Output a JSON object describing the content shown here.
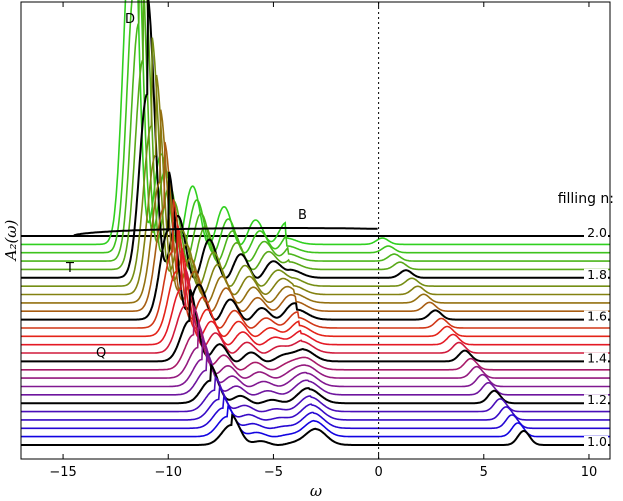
{
  "chart_data": {
    "type": "line",
    "title": "",
    "xlabel": "ω",
    "ylabel": "A₂(ω)",
    "xlim": [
      -17,
      11
    ],
    "x_ticks": [
      "−15",
      "−10",
      "−5",
      "0",
      "5",
      "10"
    ],
    "x_tick_values": [
      -15,
      -10,
      -5,
      0,
      5,
      10
    ],
    "vertical_reference_line": 0,
    "legend_title": "filling n:",
    "filling_labels": [
      "2.0",
      "1.8",
      "1.6",
      "1.4",
      "1.2",
      "1.0"
    ],
    "filling_label_values": [
      2.0,
      1.8,
      1.6,
      1.4,
      1.2,
      1.0
    ],
    "annotations": [
      "D",
      "B",
      "T",
      "Q"
    ],
    "colors": {
      "blue": "#0000ee",
      "purple": "#8a1a8a",
      "red": "#ee1a1a",
      "olive": "#8a7a10",
      "green": "#22dd22",
      "highlight": "#000000"
    },
    "series_count": 26,
    "series_fillings": [
      1.0,
      1.04,
      1.08,
      1.12,
      1.16,
      1.2,
      1.24,
      1.28,
      1.32,
      1.36,
      1.4,
      1.44,
      1.48,
      1.52,
      1.56,
      1.6,
      1.64,
      1.68,
      1.72,
      1.76,
      1.8,
      1.84,
      1.88,
      1.92,
      1.96,
      2.0
    ]
  }
}
